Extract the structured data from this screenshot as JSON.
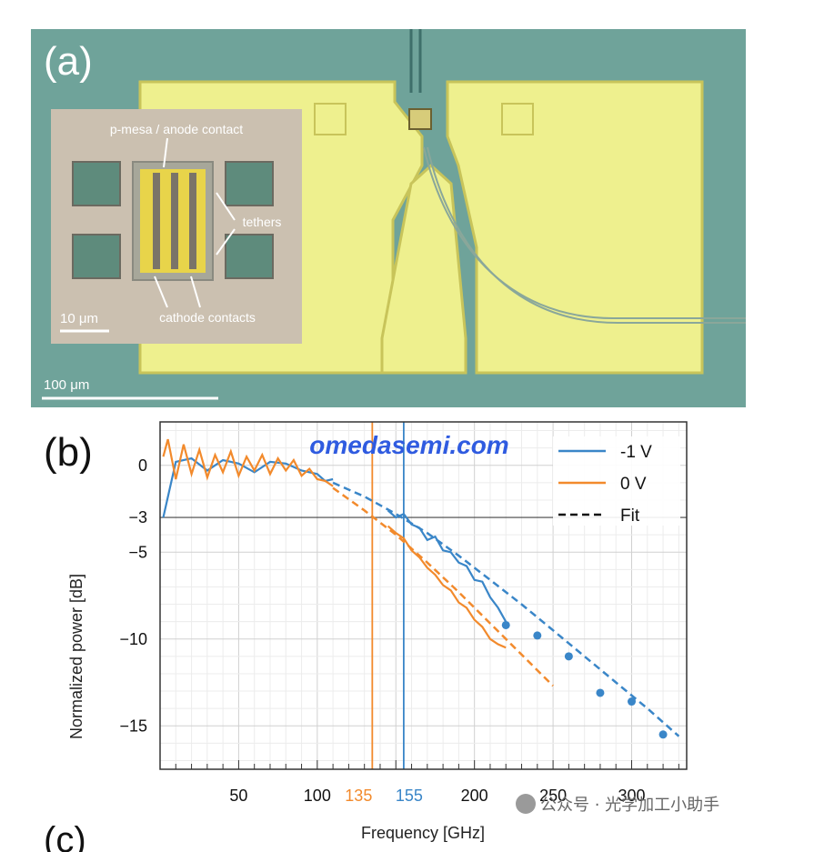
{
  "panel_a": {
    "label": "(a)",
    "inset_labels": {
      "top": "p-mesa / anode contact",
      "right": "tethers",
      "bottom": "cathode contacts"
    },
    "inset_scale": "10 μm",
    "main_scale": "100 μm",
    "colors": {
      "background": "#6fa39a",
      "gold": "#eef08e",
      "inset_bg": "#cbc0b0"
    }
  },
  "panel_b": {
    "label": "(b)",
    "watermark": "omedasemi.com"
  },
  "panel_c_label": "(c)",
  "wechat_caption": "公众号 · 光学加工小助手",
  "chart_data": {
    "type": "line",
    "xlabel": "Frequency [GHz]",
    "ylabel": "Normalized power [dB]",
    "xlim": [
      0,
      335
    ],
    "ylim": [
      -17.5,
      2.5
    ],
    "x_ticks": [
      50,
      100,
      150,
      200,
      250,
      300
    ],
    "x_tick_labels": [
      "50",
      "100",
      "",
      "200",
      "250",
      "300"
    ],
    "y_ticks": [
      0,
      -3,
      -5,
      -10,
      -15
    ],
    "y_tick_labels": [
      "0",
      "−3",
      "−5",
      "−10",
      "−15"
    ],
    "grid": true,
    "legend_position": "top-right",
    "reference_lines": [
      {
        "x": 135,
        "label": "135",
        "color": "#f28a2c"
      },
      {
        "x": 155,
        "label": "155",
        "color": "#3a86c8"
      }
    ],
    "hline": {
      "y": -3
    },
    "series": [
      {
        "name": "-1 V",
        "color": "#3a86c8",
        "style": "solid",
        "x": [
          2,
          10,
          20,
          30,
          40,
          50,
          60,
          70,
          80,
          90,
          100,
          105,
          110,
          145,
          150,
          155,
          160,
          165,
          170,
          175,
          180,
          185,
          190,
          195,
          200,
          205,
          210,
          215,
          220
        ],
        "y": [
          -3,
          0.2,
          0.4,
          -0.3,
          0.3,
          0.1,
          -0.4,
          0.2,
          0.1,
          -0.3,
          -0.5,
          -0.9,
          -0.8,
          -2.6,
          -3.0,
          -2.8,
          -3.4,
          -3.6,
          -4.3,
          -4.1,
          -4.9,
          -5.0,
          -5.6,
          -5.8,
          -6.6,
          -6.7,
          -7.6,
          -8.2,
          -9.0
        ]
      },
      {
        "name": "0 V",
        "color": "#f28a2c",
        "style": "solid",
        "x": [
          2,
          5,
          10,
          15,
          20,
          25,
          30,
          35,
          40,
          45,
          50,
          55,
          60,
          65,
          70,
          75,
          80,
          85,
          90,
          95,
          100,
          105,
          110,
          145,
          150,
          155,
          160,
          165,
          170,
          175,
          180,
          185,
          190,
          195,
          200,
          205,
          210,
          215,
          220
        ],
        "y": [
          0.5,
          1.5,
          -0.8,
          1.2,
          -0.5,
          0.9,
          -0.7,
          0.6,
          -0.4,
          0.8,
          -0.6,
          0.5,
          -0.3,
          0.6,
          -0.5,
          0.4,
          -0.3,
          0.3,
          -0.6,
          -0.2,
          -0.8,
          -0.9,
          -1.2,
          -3.5,
          -3.9,
          -4.2,
          -4.9,
          -5.3,
          -5.9,
          -6.3,
          -6.9,
          -7.2,
          -7.9,
          -8.2,
          -8.9,
          -9.3,
          -10.0,
          -10.3,
          -10.5
        ]
      },
      {
        "name": "Fit",
        "color": "#111111",
        "style": "dashed",
        "x": [],
        "y": []
      }
    ],
    "fits": [
      {
        "of": "-1 V",
        "color": "#3a86c8",
        "x": [
          110,
          130,
          150,
          170,
          190,
          210,
          230,
          250,
          270,
          290,
          310,
          330
        ],
        "y": [
          -1.0,
          -1.8,
          -2.8,
          -3.9,
          -5.2,
          -6.6,
          -8.0,
          -9.5,
          -11.0,
          -12.5,
          -14.0,
          -15.6
        ]
      },
      {
        "of": "0 V",
        "color": "#f28a2c",
        "x": [
          110,
          130,
          150,
          170,
          190,
          210,
          230,
          250
        ],
        "y": [
          -1.3,
          -2.6,
          -4.0,
          -5.6,
          -7.3,
          -9.1,
          -10.9,
          -12.7
        ]
      }
    ],
    "markers": {
      "of": "-1 V",
      "color": "#3a86c8",
      "x": [
        220,
        240,
        260,
        280,
        300,
        320
      ],
      "y": [
        -9.2,
        -9.8,
        -11.0,
        -13.1,
        -13.6,
        -15.5
      ]
    }
  }
}
